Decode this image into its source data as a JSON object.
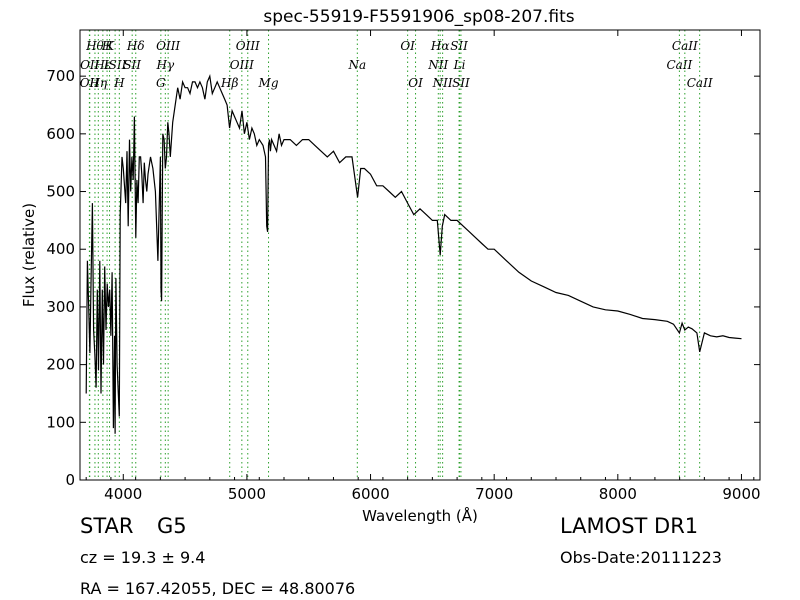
{
  "chart_data": {
    "type": "line",
    "title": "spec-55919-F5591906_sp08-207.fits",
    "xlabel": "Wavelength (Å)",
    "ylabel": "Flux (relative)",
    "xlim": [
      3650,
      9150
    ],
    "ylim": [
      0,
      780
    ],
    "xticks": [
      4000,
      5000,
      6000,
      7000,
      8000,
      9000
    ],
    "yticks": [
      0,
      100,
      200,
      300,
      400,
      500,
      600,
      700
    ],
    "grid": false,
    "line_color": "#000000",
    "marker_color": "#2ca02c",
    "series": [
      {
        "x": [
          3700,
          3710,
          3720,
          3730,
          3740,
          3750,
          3760,
          3770,
          3780,
          3790,
          3800,
          3810,
          3820,
          3830,
          3840,
          3850,
          3860,
          3870,
          3880,
          3890,
          3900,
          3910,
          3920,
          3930,
          3934,
          3940,
          3950,
          3960,
          3968,
          3975,
          3990,
          4000,
          4010,
          4020,
          4030,
          4040,
          4050,
          4060,
          4070,
          4080,
          4090,
          4101,
          4110,
          4120,
          4130,
          4140,
          4150,
          4160,
          4170,
          4180,
          4190,
          4200,
          4220,
          4240,
          4260,
          4280,
          4300,
          4305,
          4310,
          4320,
          4330,
          4340,
          4350,
          4360,
          4370,
          4380,
          4400,
          4420,
          4440,
          4460,
          4480,
          4500,
          4520,
          4540,
          4560,
          4580,
          4600,
          4620,
          4640,
          4660,
          4680,
          4700,
          4720,
          4740,
          4760,
          4780,
          4800,
          4820,
          4840,
          4860,
          4880,
          4900,
          4920,
          4940,
          4960,
          4980,
          5000,
          5020,
          5040,
          5060,
          5080,
          5100,
          5130,
          5150,
          5160,
          5167,
          5175,
          5183,
          5190,
          5200,
          5220,
          5240,
          5260,
          5280,
          5300,
          5350,
          5400,
          5450,
          5500,
          5550,
          5600,
          5650,
          5700,
          5750,
          5800,
          5850,
          5895,
          5920,
          5950,
          6000,
          6050,
          6100,
          6150,
          6200,
          6250,
          6300,
          6350,
          6400,
          6450,
          6500,
          6540,
          6563,
          6580,
          6600,
          6650,
          6700,
          6750,
          6800,
          6850,
          6900,
          6950,
          7000,
          7100,
          7200,
          7300,
          7400,
          7500,
          7600,
          7700,
          7800,
          7900,
          8000,
          8100,
          8200,
          8300,
          8400,
          8450,
          8498,
          8520,
          8542,
          8570,
          8600,
          8640,
          8662,
          8700,
          8750,
          8800,
          8850,
          8900,
          8950,
          9000
        ],
        "y": [
          150,
          380,
          300,
          220,
          350,
          480,
          260,
          220,
          160,
          330,
          190,
          380,
          150,
          330,
          200,
          370,
          260,
          340,
          300,
          330,
          250,
          360,
          90,
          250,
          80,
          350,
          200,
          150,
          110,
          460,
          560,
          540,
          510,
          480,
          570,
          440,
          590,
          500,
          560,
          520,
          630,
          420,
          520,
          480,
          560,
          560,
          530,
          480,
          550,
          520,
          500,
          530,
          560,
          540,
          500,
          380,
          560,
          330,
          310,
          600,
          590,
          540,
          560,
          620,
          600,
          560,
          620,
          650,
          680,
          660,
          690,
          680,
          680,
          670,
          690,
          690,
          680,
          690,
          680,
          660,
          690,
          700,
          670,
          680,
          690,
          680,
          670,
          660,
          650,
          610,
          640,
          630,
          620,
          610,
          640,
          600,
          620,
          590,
          610,
          600,
          580,
          590,
          580,
          560,
          440,
          430,
          580,
          590,
          570,
          590,
          580,
          570,
          600,
          580,
          590,
          590,
          580,
          590,
          590,
          580,
          570,
          560,
          570,
          550,
          560,
          560,
          490,
          540,
          540,
          530,
          510,
          510,
          500,
          490,
          500,
          480,
          460,
          470,
          460,
          450,
          450,
          390,
          440,
          460,
          450,
          450,
          440,
          430,
          420,
          410,
          400,
          400,
          380,
          360,
          345,
          335,
          325,
          320,
          310,
          300,
          295,
          293,
          287,
          280,
          278,
          275,
          270,
          255,
          272,
          260,
          265,
          262,
          255,
          222,
          255,
          250,
          248,
          250,
          247,
          246,
          245
        ]
      }
    ],
    "lines": [
      {
        "x": 3726,
        "label": "OII",
        "row": 2
      },
      {
        "x": 3729,
        "label": "OII",
        "row": 1
      },
      {
        "x": 3771,
        "label": "Hθ",
        "row": 0
      },
      {
        "x": 3798,
        "label": "Hη",
        "row": 2
      },
      {
        "x": 3835,
        "label": "Hε",
        "row": 1
      },
      {
        "x": 3869,
        "label": "H",
        "row": 0
      },
      {
        "x": 3889,
        "label": "K",
        "row": 0
      },
      {
        "x": 3934,
        "label": "ISII",
        "row": 1
      },
      {
        "x": 3968,
        "label": "H",
        "row": 2
      },
      {
        "x": 4072,
        "label": "SII",
        "row": 1
      },
      {
        "x": 4101,
        "label": "Hδ",
        "row": 0
      },
      {
        "x": 4304,
        "label": "G",
        "row": 2
      },
      {
        "x": 4340,
        "label": "Hγ",
        "row": 1
      },
      {
        "x": 4363,
        "label": "OIII",
        "row": 0
      },
      {
        "x": 4861,
        "label": "Hβ",
        "row": 2
      },
      {
        "x": 4959,
        "label": "OIII",
        "row": 1
      },
      {
        "x": 5007,
        "label": "OIII",
        "row": 0
      },
      {
        "x": 5175,
        "label": "Mg",
        "row": 2
      },
      {
        "x": 5893,
        "label": "Na",
        "row": 1
      },
      {
        "x": 6300,
        "label": "OI",
        "row": 0
      },
      {
        "x": 6364,
        "label": "OI",
        "row": 2
      },
      {
        "x": 6548,
        "label": "NII",
        "row": 1
      },
      {
        "x": 6563,
        "label": "Hα",
        "row": 0
      },
      {
        "x": 6583,
        "label": "NII",
        "row": 2
      },
      {
        "x": 6716,
        "label": "SII",
        "row": 0
      },
      {
        "x": 6731,
        "label": "SII",
        "row": 2
      },
      {
        "x": 6720,
        "label": "Li",
        "row": 1
      },
      {
        "x": 8498,
        "label": "CaII",
        "row": 1
      },
      {
        "x": 8542,
        "label": "CaII",
        "row": 0
      },
      {
        "x": 8662,
        "label": "CaII",
        "row": 2
      }
    ]
  },
  "info": {
    "class_label": "STAR",
    "subclass_label": "G5",
    "cz_text": "cz = 19.3  ± 9.4",
    "coords_text": "RA = 167.42055, DEC = 48.80076",
    "survey_label": "LAMOST DR1",
    "obs_date_text": "Obs-Date:20111223"
  }
}
